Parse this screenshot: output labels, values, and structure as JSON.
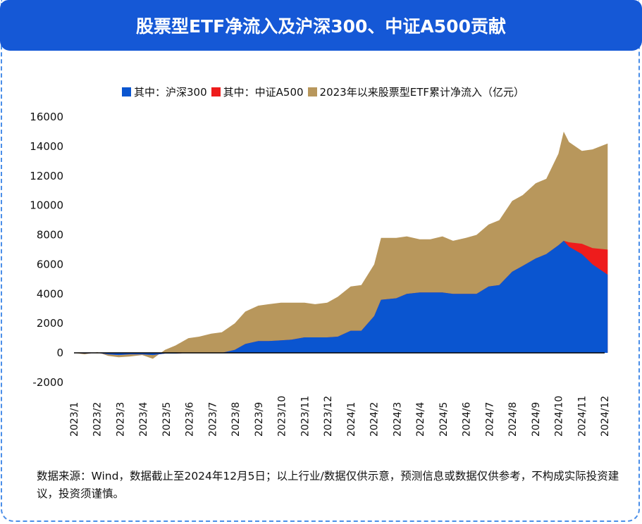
{
  "title": "股票型ETF净流入及沪深300、中证A500贡献",
  "note": "数据来源：Wind，数据截止至2024年12月5日；以上行业/数据仅供示意，预测信息或数据仅供参考，不构成实际投资建议，投资须谨慎。",
  "chart_data": {
    "type": "area",
    "title": "股票型ETF净流入及沪深300、中证A500贡献",
    "ylim": [
      -2000,
      16000
    ],
    "yticks": [
      -2000,
      0,
      2000,
      4000,
      6000,
      8000,
      10000,
      12000,
      14000,
      16000
    ],
    "xticks": [
      "2023/1",
      "2023/2",
      "2023/3",
      "2023/4",
      "2023/5",
      "2023/6",
      "2023/7",
      "2023/8",
      "2023/9",
      "2023/10",
      "2023/11",
      "2023/12",
      "2024/1",
      "2024/2",
      "2024/3",
      "2024/4",
      "2024/5",
      "2024/6",
      "2024/7",
      "2024/8",
      "2024/9",
      "2024/10",
      "2024/11",
      "2024/12"
    ],
    "grid": false,
    "legend_position": "top",
    "x": [
      "2023-01-01",
      "2023-01-15",
      "2023-02-01",
      "2023-02-15",
      "2023-03-01",
      "2023-03-15",
      "2023-04-01",
      "2023-04-15",
      "2023-05-01",
      "2023-05-15",
      "2023-06-01",
      "2023-06-15",
      "2023-07-01",
      "2023-07-15",
      "2023-08-01",
      "2023-08-15",
      "2023-09-01",
      "2023-09-15",
      "2023-10-01",
      "2023-10-15",
      "2023-11-01",
      "2023-11-15",
      "2023-12-01",
      "2023-12-15",
      "2024-01-01",
      "2024-01-15",
      "2024-02-01",
      "2024-02-10",
      "2024-03-01",
      "2024-03-15",
      "2024-04-01",
      "2024-04-15",
      "2024-05-01",
      "2024-05-15",
      "2024-06-01",
      "2024-06-15",
      "2024-07-01",
      "2024-07-15",
      "2024-08-01",
      "2024-08-15",
      "2024-09-01",
      "2024-09-15",
      "2024-10-01",
      "2024-10-08",
      "2024-10-15",
      "2024-11-01",
      "2024-11-15",
      "2024-12-05"
    ],
    "series": [
      {
        "name": "2023年以来股票型ETF累计净流入（亿元）",
        "color": "#b8975c",
        "values": [
          0,
          -100,
          50,
          -200,
          -300,
          -250,
          -150,
          -400,
          200,
          500,
          1000,
          1100,
          1300,
          1400,
          2000,
          2800,
          3200,
          3300,
          3400,
          3400,
          3400,
          3300,
          3400,
          3800,
          4500,
          4600,
          6000,
          7800,
          7800,
          7900,
          7700,
          7700,
          7900,
          7600,
          7800,
          8000,
          8700,
          9000,
          10300,
          10700,
          11500,
          11800,
          13500,
          15000,
          14300,
          13700,
          13800,
          14200
        ]
      },
      {
        "name": "其中：中证A500",
        "color": "#ee1c1c",
        "values": [
          0,
          0,
          0,
          0,
          0,
          0,
          0,
          0,
          0,
          0,
          0,
          0,
          0,
          0,
          0,
          0,
          0,
          0,
          0,
          0,
          0,
          0,
          0,
          0,
          0,
          0,
          0,
          0,
          0,
          0,
          0,
          0,
          0,
          0,
          0,
          0,
          0,
          0,
          0,
          0,
          0,
          0,
          0,
          0,
          300,
          700,
          1100,
          1700
        ]
      },
      {
        "name": "其中：沪深300",
        "color": "#0a55d0",
        "values": [
          0,
          -50,
          0,
          -100,
          -150,
          -100,
          -100,
          -150,
          -50,
          -50,
          0,
          0,
          0,
          0,
          200,
          600,
          800,
          800,
          850,
          900,
          1050,
          1050,
          1050,
          1100,
          1500,
          1500,
          2500,
          3600,
          3700,
          4000,
          4100,
          4100,
          4100,
          4000,
          4000,
          4000,
          4500,
          4600,
          5500,
          5900,
          6400,
          6700,
          7300,
          7600,
          7200,
          6700,
          6000,
          5300
        ]
      }
    ]
  }
}
